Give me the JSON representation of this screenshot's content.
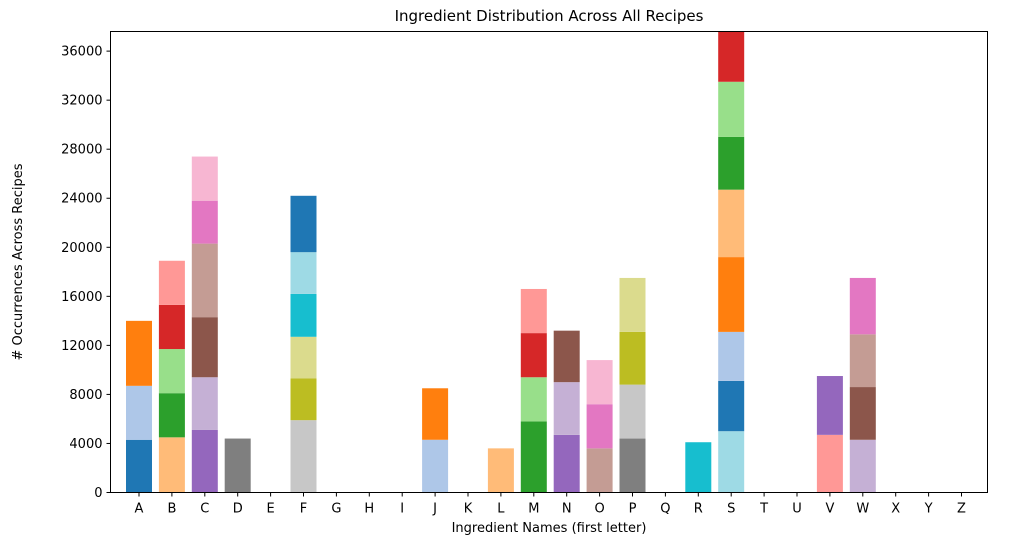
{
  "chart_data": {
    "type": "bar",
    "stacked": true,
    "title": "Ingredient Distribution Across All Recipes",
    "xlabel": "Ingredient Names (first letter)",
    "ylabel": "# Occurrences Across Recipes",
    "categories": [
      "A",
      "B",
      "C",
      "D",
      "E",
      "F",
      "G",
      "H",
      "I",
      "J",
      "K",
      "L",
      "M",
      "N",
      "O",
      "P",
      "Q",
      "R",
      "S",
      "T",
      "U",
      "V",
      "W",
      "X",
      "Y",
      "Z"
    ],
    "ylim": [
      0,
      37600
    ],
    "yticks": [
      0,
      4000,
      8000,
      12000,
      16000,
      20000,
      24000,
      28000,
      32000,
      36000
    ],
    "ytick_labels": [
      "0",
      "4000",
      "8000",
      "12000",
      "16000",
      "20000",
      "24000",
      "28000",
      "32000",
      "36000"
    ],
    "grid": false,
    "legend": false,
    "bars": [
      {
        "category": "A",
        "segments": [
          {
            "value": 4300,
            "color": "#1f77b4"
          },
          {
            "value": 4400,
            "color": "#aec7e8"
          },
          {
            "value": 5300,
            "color": "#ff7f0e"
          }
        ]
      },
      {
        "category": "B",
        "segments": [
          {
            "value": 4500,
            "color": "#ffbb78"
          },
          {
            "value": 3600,
            "color": "#2ca02c"
          },
          {
            "value": 3600,
            "color": "#98df8a"
          },
          {
            "value": 3600,
            "color": "#d62728"
          },
          {
            "value": 3600,
            "color": "#ff9896"
          }
        ]
      },
      {
        "category": "C",
        "segments": [
          {
            "value": 5100,
            "color": "#9467bd"
          },
          {
            "value": 4300,
            "color": "#c5b0d5"
          },
          {
            "value": 4900,
            "color": "#8c564b"
          },
          {
            "value": 6000,
            "color": "#c49c94"
          },
          {
            "value": 3500,
            "color": "#e377c2"
          },
          {
            "value": 3600,
            "color": "#f7b6d2"
          }
        ]
      },
      {
        "category": "D",
        "segments": [
          {
            "value": 4400,
            "color": "#7f7f7f"
          }
        ]
      },
      {
        "category": "E",
        "segments": []
      },
      {
        "category": "F",
        "segments": [
          {
            "value": 5900,
            "color": "#c7c7c7"
          },
          {
            "value": 3400,
            "color": "#bcbd22"
          },
          {
            "value": 3400,
            "color": "#dbdb8d"
          },
          {
            "value": 3500,
            "color": "#17becf"
          },
          {
            "value": 3400,
            "color": "#9edae5"
          },
          {
            "value": 4600,
            "color": "#1f77b4"
          }
        ]
      },
      {
        "category": "G",
        "segments": []
      },
      {
        "category": "H",
        "segments": []
      },
      {
        "category": "I",
        "segments": []
      },
      {
        "category": "J",
        "segments": [
          {
            "value": 4300,
            "color": "#aec7e8"
          },
          {
            "value": 4200,
            "color": "#ff7f0e"
          }
        ]
      },
      {
        "category": "K",
        "segments": []
      },
      {
        "category": "L",
        "segments": [
          {
            "value": 3600,
            "color": "#ffbb78"
          }
        ]
      },
      {
        "category": "M",
        "segments": [
          {
            "value": 5800,
            "color": "#2ca02c"
          },
          {
            "value": 3600,
            "color": "#98df8a"
          },
          {
            "value": 3600,
            "color": "#d62728"
          },
          {
            "value": 3600,
            "color": "#ff9896"
          }
        ]
      },
      {
        "category": "N",
        "segments": [
          {
            "value": 4700,
            "color": "#9467bd"
          },
          {
            "value": 4300,
            "color": "#c5b0d5"
          },
          {
            "value": 4200,
            "color": "#8c564b"
          }
        ]
      },
      {
        "category": "O",
        "segments": [
          {
            "value": 3600,
            "color": "#c49c94"
          },
          {
            "value": 3600,
            "color": "#e377c2"
          },
          {
            "value": 3600,
            "color": "#f7b6d2"
          }
        ]
      },
      {
        "category": "P",
        "segments": [
          {
            "value": 4400,
            "color": "#7f7f7f"
          },
          {
            "value": 4400,
            "color": "#c7c7c7"
          },
          {
            "value": 4300,
            "color": "#bcbd22"
          },
          {
            "value": 4400,
            "color": "#dbdb8d"
          }
        ]
      },
      {
        "category": "Q",
        "segments": []
      },
      {
        "category": "R",
        "segments": [
          {
            "value": 4100,
            "color": "#17becf"
          }
        ]
      },
      {
        "category": "S",
        "segments": [
          {
            "value": 5000,
            "color": "#9edae5"
          },
          {
            "value": 4100,
            "color": "#1f77b4"
          },
          {
            "value": 4000,
            "color": "#aec7e8"
          },
          {
            "value": 6100,
            "color": "#ff7f0e"
          },
          {
            "value": 5500,
            "color": "#ffbb78"
          },
          {
            "value": 4300,
            "color": "#2ca02c"
          },
          {
            "value": 4500,
            "color": "#98df8a"
          },
          {
            "value": 4200,
            "color": "#d62728"
          }
        ]
      },
      {
        "category": "T",
        "segments": []
      },
      {
        "category": "U",
        "segments": []
      },
      {
        "category": "V",
        "segments": [
          {
            "value": 4700,
            "color": "#ff9896"
          },
          {
            "value": 4800,
            "color": "#9467bd"
          }
        ]
      },
      {
        "category": "W",
        "segments": [
          {
            "value": 4300,
            "color": "#c5b0d5"
          },
          {
            "value": 4300,
            "color": "#8c564b"
          },
          {
            "value": 4300,
            "color": "#c49c94"
          },
          {
            "value": 4600,
            "color": "#e377c2"
          }
        ]
      },
      {
        "category": "X",
        "segments": []
      },
      {
        "category": "Y",
        "segments": []
      },
      {
        "category": "Z",
        "segments": []
      }
    ]
  }
}
